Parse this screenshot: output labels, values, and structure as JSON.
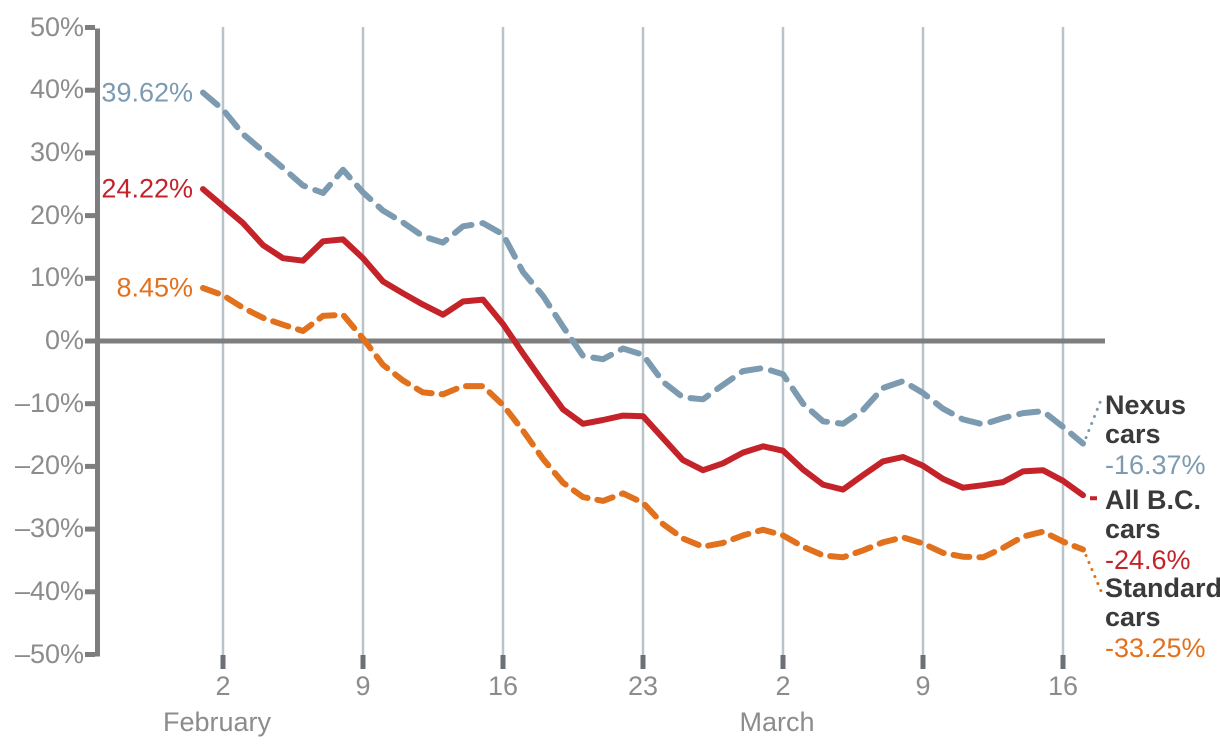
{
  "chart_data": {
    "type": "line",
    "title": "",
    "x_range": {
      "start": "February 1",
      "end": "March 17"
    },
    "x_axis": {
      "ticks": [
        {
          "label": "2",
          "day": 1
        },
        {
          "label": "9",
          "day": 8
        },
        {
          "label": "16",
          "day": 15
        },
        {
          "label": "23",
          "day": 22
        },
        {
          "label": "2",
          "day": 29
        },
        {
          "label": "9",
          "day": 36
        },
        {
          "label": "16",
          "day": 43
        }
      ],
      "months": [
        {
          "label": "February",
          "day": 1
        },
        {
          "label": "March",
          "day": 29
        }
      ]
    },
    "y_axis": {
      "unit": "%",
      "ylim": [
        -50,
        50
      ],
      "ticks": [
        {
          "label": "50%",
          "value": 50
        },
        {
          "label": "40%",
          "value": 40
        },
        {
          "label": "30%",
          "value": 30
        },
        {
          "label": "20%",
          "value": 20
        },
        {
          "label": "10%",
          "value": 10
        },
        {
          "label": "0%",
          "value": 0
        },
        {
          "label": "–10%",
          "value": -10
        },
        {
          "label": "–20%",
          "value": -20
        },
        {
          "label": "–30%",
          "value": -30
        },
        {
          "label": "–40%",
          "value": -40
        },
        {
          "label": "–50%",
          "value": -50
        }
      ]
    },
    "zero_line": true,
    "grid": "vertical-weekly",
    "legend_position": "right",
    "series": [
      {
        "name": "Nexus cars",
        "start_label": "39.62%",
        "end_label": "-16.37%",
        "color": "#7c9bb1",
        "line_style": "dashed",
        "values": [
          39.62,
          36.9,
          33.0,
          30.3,
          27.6,
          24.8,
          23.6,
          27.3,
          23.7,
          20.8,
          18.9,
          16.7,
          15.7,
          18.3,
          18.8,
          17.0,
          11.0,
          7.2,
          2.3,
          -2.4,
          -2.9,
          -1.2,
          -2.2,
          -6.5,
          -9.0,
          -9.3,
          -7.0,
          -4.8,
          -4.3,
          -5.3,
          -10.0,
          -12.8,
          -13.2,
          -11.0,
          -7.5,
          -6.4,
          -8.3,
          -10.8,
          -12.5,
          -13.3,
          -12.3,
          -11.5,
          -11.2,
          -13.7,
          -16.37
        ]
      },
      {
        "name": "All B.C. cars",
        "start_label": "24.22%",
        "end_label": "-24.6%",
        "color": "#c32329",
        "line_style": "solid",
        "values": [
          24.22,
          21.5,
          18.8,
          15.3,
          13.2,
          12.8,
          15.9,
          16.2,
          13.2,
          9.5,
          7.6,
          5.8,
          4.2,
          6.3,
          6.6,
          2.7,
          -2.0,
          -6.5,
          -10.9,
          -13.2,
          -12.6,
          -11.9,
          -12.0,
          -15.5,
          -19.0,
          -20.6,
          -19.5,
          -17.8,
          -16.8,
          -17.5,
          -20.5,
          -22.9,
          -23.7,
          -21.4,
          -19.2,
          -18.5,
          -19.9,
          -22.0,
          -23.4,
          -23.0,
          -22.5,
          -20.8,
          -20.6,
          -22.3,
          -24.6
        ]
      },
      {
        "name": "Standard cars",
        "start_label": "8.45%",
        "end_label": "-33.25%",
        "color": "#e2711d",
        "line_style": "dashed",
        "values": [
          8.45,
          7.3,
          5.3,
          3.7,
          2.6,
          1.6,
          4.0,
          4.2,
          0.4,
          -3.8,
          -6.3,
          -8.2,
          -8.5,
          -7.2,
          -7.2,
          -10.2,
          -14.3,
          -18.8,
          -22.6,
          -24.9,
          -25.5,
          -24.3,
          -25.8,
          -29.2,
          -31.5,
          -32.8,
          -32.2,
          -31.0,
          -30.1,
          -31.0,
          -32.8,
          -34.2,
          -34.5,
          -33.4,
          -32.1,
          -31.3,
          -32.3,
          -33.8,
          -34.4,
          -34.5,
          -33.0,
          -31.2,
          -30.4,
          -32.0,
          -33.25
        ]
      }
    ],
    "colors": {
      "grid": "#b9c3ca",
      "axis": "#7e7e7e",
      "zero_line": "#7e7e7e",
      "tick_stub": "#6b7177",
      "tick_text": "#8c8c8c",
      "label_text": "#3a3a3a"
    }
  }
}
